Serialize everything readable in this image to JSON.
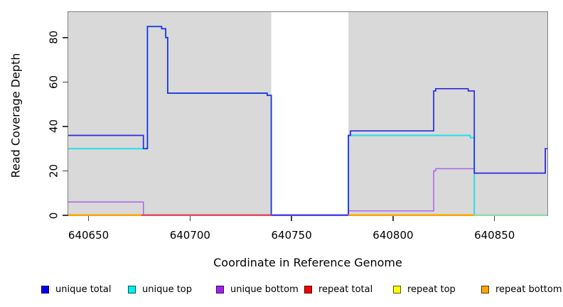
{
  "y_axis": {
    "title": "Read Coverage Depth",
    "tick_labels": [
      "0",
      "20",
      "40",
      "60",
      "80"
    ],
    "tick_values": [
      0,
      20,
      40,
      60,
      80
    ]
  },
  "x_axis": {
    "title": "Coordinate in Reference Genome",
    "tick_labels": [
      "640650",
      "640700",
      "640750",
      "640800",
      "640850"
    ],
    "tick_values": [
      640650,
      640700,
      640750,
      640800,
      640850
    ]
  },
  "legend": {
    "items": [
      {
        "label": "unique total",
        "color": "#0000EE"
      },
      {
        "label": "unique top",
        "color": "#00EEEE"
      },
      {
        "label": "unique bottom",
        "color": "#A020F0"
      },
      {
        "label": "repeat total",
        "color": "#EE0000"
      },
      {
        "label": "repeat top",
        "color": "#FFFF00"
      },
      {
        "label": "repeat bottom",
        "color": "#FFA500"
      }
    ]
  },
  "chart_data": {
    "type": "line",
    "step": "after",
    "title": "",
    "xlabel": "Coordinate in Reference Genome",
    "ylabel": "Read Coverage Depth",
    "xlim": [
      640640,
      640876
    ],
    "ylim": [
      0,
      91.5
    ],
    "x_ticks": [
      640650,
      640700,
      640750,
      640800,
      640850
    ],
    "y_ticks": [
      0,
      20,
      40,
      60,
      80
    ],
    "panel_background": "#D9D9D9",
    "grid": false,
    "legend_position": "bottom",
    "no_data_region": {
      "x_start": 640740,
      "x_end": 640778,
      "color": "#FFFFFF"
    },
    "series": [
      {
        "name": "repeat total",
        "color": "#E0485E",
        "width": 1.6,
        "points": [
          [
            640640,
            0
          ],
          [
            640876,
            0
          ]
        ]
      },
      {
        "name": "repeat top",
        "color": "#FFFF00",
        "width": 1.6,
        "points": [
          [
            640640,
            0
          ],
          [
            640876,
            0
          ]
        ]
      },
      {
        "name": "repeat bottom",
        "color": "#FFA500",
        "width": 1.6,
        "points": [
          [
            640640,
            0
          ],
          [
            640876,
            0
          ]
        ]
      },
      {
        "name": "unique top",
        "color": "#25DFEA",
        "width": 2.0,
        "points": [
          [
            640640,
            30
          ],
          [
            640679,
            85
          ],
          [
            640686,
            84
          ],
          [
            640688,
            80
          ],
          [
            640689,
            55
          ],
          [
            640738,
            54
          ],
          [
            640740,
            0
          ],
          [
            640778,
            36
          ],
          [
            640838,
            35
          ],
          [
            640840,
            0
          ],
          [
            640876,
            0
          ]
        ]
      },
      {
        "name": "unique bottom",
        "color": "#A965E8",
        "width": 1.5,
        "points": [
          [
            640640,
            6
          ],
          [
            640677,
            0
          ],
          [
            640778,
            2
          ],
          [
            640820,
            20
          ],
          [
            640821,
            21
          ],
          [
            640840,
            19
          ],
          [
            640875,
            30
          ],
          [
            640876,
            30
          ]
        ]
      },
      {
        "name": "unique total",
        "color": "#2A2ADF",
        "width": 1.7,
        "points": [
          [
            640640,
            36
          ],
          [
            640677,
            30
          ],
          [
            640679,
            85
          ],
          [
            640686,
            84
          ],
          [
            640688,
            80
          ],
          [
            640689,
            55
          ],
          [
            640738,
            54
          ],
          [
            640740,
            0
          ],
          [
            640778,
            36
          ],
          [
            640779,
            38
          ],
          [
            640820,
            56
          ],
          [
            640821,
            57
          ],
          [
            640837,
            56
          ],
          [
            640840,
            19
          ],
          [
            640875,
            30
          ],
          [
            640876,
            30
          ]
        ]
      }
    ],
    "baseline_visible_segments": [
      {
        "x_start": 640640,
        "x_end": 640676,
        "color": "#FFA500"
      },
      {
        "x_start": 640676,
        "x_end": 640740,
        "color": "#E0485E"
      },
      {
        "x_start": 640740,
        "x_end": 640778,
        "color": "#4B45E6"
      },
      {
        "x_start": 640778,
        "x_end": 640840,
        "color": "#FFA500"
      },
      {
        "x_start": 640840,
        "x_end": 640876,
        "color": "#9CDBA6"
      }
    ]
  }
}
